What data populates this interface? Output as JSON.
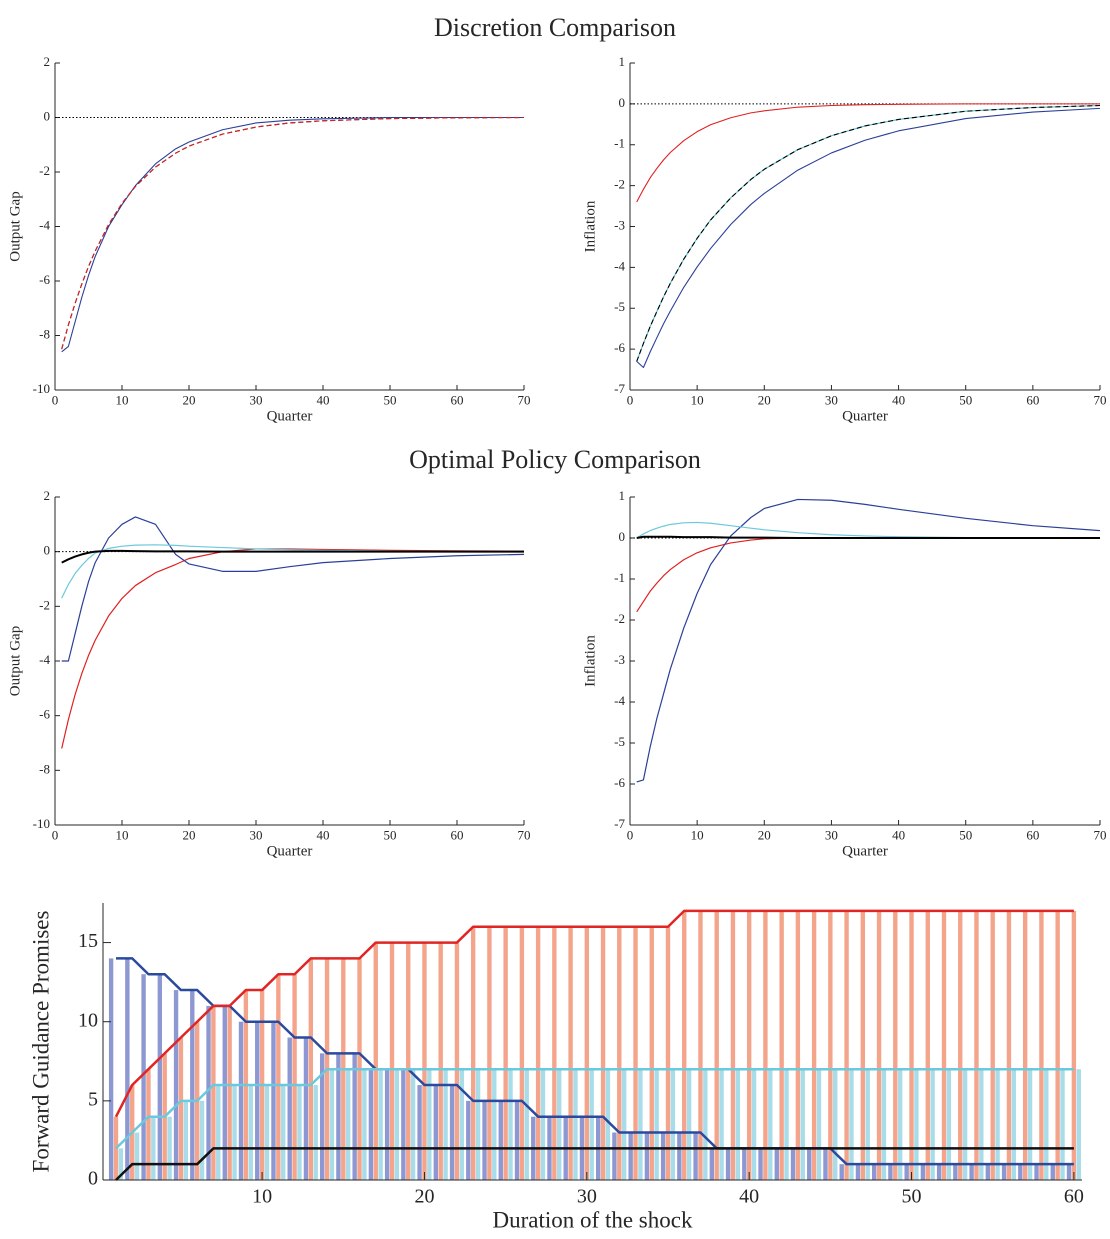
{
  "headings": [
    "Discretion Comparison",
    "Optimal Policy Comparison"
  ],
  "chart_data": [
    {
      "type": "line",
      "xlabel": "Quarter",
      "ylabel": "Output Gap",
      "x": [
        1,
        2,
        3,
        4,
        5,
        6,
        8,
        10,
        12,
        15,
        18,
        20,
        25,
        30,
        35,
        40,
        50,
        60,
        70
      ],
      "xlim": [
        0,
        70
      ],
      "xticks": [
        0,
        10,
        20,
        30,
        40,
        50,
        60,
        70
      ],
      "ylim": [
        -10,
        2
      ],
      "yticks": [
        -10,
        -8,
        -6,
        -4,
        -2,
        0,
        2
      ],
      "hline": 0,
      "series": [
        {
          "color": "#2b3f99",
          "dash": false,
          "values": [
            -8.6,
            -8.4,
            -7.5,
            -6.6,
            -5.8,
            -5.1,
            -4.0,
            -3.2,
            -2.5,
            -1.7,
            -1.15,
            -0.9,
            -0.45,
            -0.2,
            -0.1,
            -0.05,
            0,
            0,
            0
          ]
        },
        {
          "color": "#000000",
          "dash": true,
          "values": [
            -8.5,
            -7.61,
            -6.82,
            -6.11,
            -5.47,
            -4.9,
            -3.93,
            -3.15,
            -2.53,
            -1.82,
            -1.31,
            -1.05,
            -0.61,
            -0.35,
            -0.2,
            -0.12,
            -0.04,
            -0.01,
            0
          ]
        },
        {
          "color": "#e02020",
          "dash": true,
          "values": [
            -8.5,
            -7.61,
            -6.82,
            -6.11,
            -5.47,
            -4.9,
            -3.93,
            -3.15,
            -2.53,
            -1.82,
            -1.31,
            -1.05,
            -0.61,
            -0.35,
            -0.2,
            -0.12,
            -0.04,
            -0.01,
            0
          ]
        }
      ]
    },
    {
      "type": "line",
      "xlabel": "Quarter",
      "ylabel": "Inflation",
      "x": [
        1,
        2,
        3,
        4,
        5,
        6,
        8,
        10,
        12,
        15,
        18,
        20,
        25,
        30,
        35,
        40,
        50,
        60,
        70
      ],
      "xlim": [
        0,
        70
      ],
      "xticks": [
        0,
        10,
        20,
        30,
        40,
        50,
        60,
        70
      ],
      "ylim": [
        -7,
        1
      ],
      "yticks": [
        -7,
        -6,
        -5,
        -4,
        -3,
        -2,
        -1,
        0,
        1
      ],
      "hline": 0,
      "series": [
        {
          "color": "#e02020",
          "dash": false,
          "values": [
            -2.4,
            -2.09,
            -1.81,
            -1.58,
            -1.37,
            -1.19,
            -0.9,
            -0.68,
            -0.51,
            -0.34,
            -0.22,
            -0.17,
            -0.08,
            -0.04,
            -0.02,
            -0.01,
            0,
            0,
            0
          ]
        },
        {
          "color": "#4fc0c8",
          "dash": false,
          "values": [
            -6.3,
            -5.86,
            -5.45,
            -5.08,
            -4.72,
            -4.39,
            -3.8,
            -3.29,
            -2.84,
            -2.3,
            -1.85,
            -1.6,
            -1.12,
            -0.78,
            -0.54,
            -0.38,
            -0.18,
            -0.09,
            -0.04
          ]
        },
        {
          "color": "#000000",
          "dash": true,
          "values": [
            -6.3,
            -5.86,
            -5.45,
            -5.08,
            -4.72,
            -4.39,
            -3.8,
            -3.29,
            -2.84,
            -2.3,
            -1.85,
            -1.6,
            -1.12,
            -0.78,
            -0.54,
            -0.38,
            -0.18,
            -0.09,
            -0.04
          ]
        },
        {
          "color": "#2b3f99",
          "dash": false,
          "values": [
            -6.3,
            -6.45,
            -6.07,
            -5.72,
            -5.38,
            -5.07,
            -4.49,
            -3.99,
            -3.54,
            -2.95,
            -2.46,
            -2.19,
            -1.62,
            -1.2,
            -0.89,
            -0.66,
            -0.36,
            -0.2,
            -0.11
          ]
        }
      ]
    },
    {
      "type": "line",
      "xlabel": "Quarter",
      "ylabel": "Output Gap",
      "x": [
        1,
        2,
        3,
        4,
        5,
        6,
        8,
        10,
        12,
        15,
        18,
        20,
        25,
        30,
        35,
        40,
        50,
        60,
        70
      ],
      "xlim": [
        0,
        70
      ],
      "xticks": [
        0,
        10,
        20,
        30,
        40,
        50,
        60,
        70
      ],
      "ylim": [
        -10,
        2
      ],
      "yticks": [
        -10,
        -8,
        -6,
        -4,
        -2,
        0,
        2
      ],
      "hline": 0,
      "series": [
        {
          "color": "#e02020",
          "dash": false,
          "width": 1.2,
          "values": [
            -7.2,
            -6.14,
            -5.23,
            -4.46,
            -3.8,
            -3.24,
            -2.35,
            -1.71,
            -1.24,
            -0.77,
            -0.47,
            -0.25,
            0,
            0.1,
            0.1,
            0.08,
            0.05,
            0.03,
            0.02
          ]
        },
        {
          "color": "#2b3f99",
          "dash": false,
          "width": 1.2,
          "values": [
            -4,
            -4,
            -3,
            -2,
            -1.1,
            -0.4,
            0.5,
            1,
            1.27,
            1,
            -0.1,
            -0.45,
            -0.72,
            -0.72,
            -0.55,
            -0.4,
            -0.25,
            -0.15,
            -0.1
          ]
        },
        {
          "color": "#6cc8dc",
          "dash": false,
          "width": 1.2,
          "values": [
            -1.7,
            -1.2,
            -0.8,
            -0.5,
            -0.25,
            -0.05,
            0.12,
            0.2,
            0.24,
            0.25,
            0.23,
            0.2,
            0.15,
            0.1,
            0.07,
            0.05,
            0.02,
            0.01,
            0
          ]
        },
        {
          "color": "#000000",
          "dash": false,
          "width": 2,
          "values": [
            -0.4,
            -0.28,
            -0.18,
            -0.1,
            -0.04,
            0,
            0.03,
            0.03,
            0.02,
            0.01,
            0.01,
            0.01,
            0,
            0,
            0,
            0,
            0,
            0,
            0
          ]
        }
      ]
    },
    {
      "type": "line",
      "xlabel": "Quarter",
      "ylabel": "Inflation",
      "x": [
        1,
        2,
        3,
        4,
        5,
        6,
        8,
        10,
        12,
        15,
        18,
        20,
        25,
        30,
        35,
        40,
        50,
        60,
        70
      ],
      "xlim": [
        0,
        70
      ],
      "xticks": [
        0,
        10,
        20,
        30,
        40,
        50,
        60,
        70
      ],
      "ylim": [
        -7,
        1
      ],
      "yticks": [
        -7,
        -6,
        -5,
        -4,
        -3,
        -2,
        -1,
        0,
        1
      ],
      "hline": 0,
      "series": [
        {
          "color": "#e02020",
          "dash": false,
          "width": 1.2,
          "values": [
            -1.8,
            -1.55,
            -1.3,
            -1.1,
            -0.92,
            -0.77,
            -0.53,
            -0.36,
            -0.24,
            -0.12,
            -0.05,
            -0.02,
            0,
            0,
            0,
            0,
            0,
            0,
            0
          ]
        },
        {
          "color": "#2b3f99",
          "dash": false,
          "width": 1.2,
          "values": [
            -5.95,
            -5.9,
            -5.1,
            -4.4,
            -3.8,
            -3.2,
            -2.2,
            -1.35,
            -0.65,
            0.05,
            0.5,
            0.72,
            0.94,
            0.92,
            0.82,
            0.7,
            0.48,
            0.3,
            0.18
          ]
        },
        {
          "color": "#6cc8dc",
          "dash": false,
          "width": 1.2,
          "values": [
            0,
            0.1,
            0.18,
            0.24,
            0.29,
            0.33,
            0.37,
            0.38,
            0.36,
            0.3,
            0.24,
            0.2,
            0.13,
            0.08,
            0.05,
            0.03,
            0.01,
            0,
            0
          ]
        },
        {
          "color": "#000000",
          "dash": false,
          "width": 2,
          "values": [
            0,
            0.03,
            0.03,
            0.03,
            0.03,
            0.03,
            0.02,
            0.02,
            0.02,
            0.01,
            0.01,
            0.01,
            0,
            0,
            0,
            0,
            0,
            0,
            0
          ]
        }
      ]
    },
    {
      "type": "bar_line",
      "xlabel": "Duration of the shock",
      "ylabel": "Forward Guidance Promises",
      "x": [
        1,
        2,
        3,
        4,
        5,
        6,
        7,
        8,
        9,
        10,
        11,
        12,
        13,
        14,
        15,
        16,
        17,
        18,
        19,
        20,
        21,
        22,
        23,
        24,
        25,
        26,
        27,
        28,
        29,
        30,
        31,
        32,
        33,
        34,
        35,
        36,
        37,
        38,
        39,
        40,
        41,
        42,
        43,
        44,
        45,
        46,
        47,
        48,
        49,
        50,
        51,
        52,
        53,
        54,
        55,
        56,
        57,
        58,
        59,
        60
      ],
      "xlim": [
        0.2,
        60.5
      ],
      "xticks": [
        10,
        20,
        30,
        40,
        50,
        60
      ],
      "ylim": [
        0,
        17.5
      ],
      "yticks": [
        0,
        5,
        10,
        15
      ],
      "series": [
        {
          "color": "#2b4a9e",
          "bar_color": "#8d97d2",
          "values": [
            14,
            14,
            13,
            13,
            12,
            12,
            11,
            11,
            10,
            10,
            10,
            9,
            9,
            8,
            8,
            8,
            7,
            7,
            7,
            6,
            6,
            6,
            5,
            5,
            5,
            5,
            4,
            4,
            4,
            4,
            4,
            3,
            3,
            3,
            3,
            3,
            3,
            2,
            2,
            2,
            2,
            2,
            2,
            2,
            2,
            1,
            1,
            1,
            1,
            1,
            1,
            1,
            1,
            1,
            1,
            1,
            1,
            1,
            1,
            1
          ]
        },
        {
          "color": "#e02525",
          "bar_color": "#f4a48a",
          "values": [
            4,
            6,
            7,
            8,
            9,
            10,
            11,
            11,
            12,
            12,
            13,
            13,
            14,
            14,
            14,
            14,
            15,
            15,
            15,
            15,
            15,
            15,
            16,
            16,
            16,
            16,
            16,
            16,
            16,
            16,
            16,
            16,
            16,
            16,
            16,
            17,
            17,
            17,
            17,
            17,
            17,
            17,
            17,
            17,
            17,
            17,
            17,
            17,
            17,
            17,
            17,
            17,
            17,
            17,
            17,
            17,
            17,
            17,
            17,
            17
          ]
        },
        {
          "color": "#6cc8dc",
          "bar_color": "#a8dce8",
          "values": [
            2,
            3,
            4,
            4,
            5,
            5,
            6,
            6,
            6,
            6,
            6,
            6,
            6,
            7,
            7,
            7,
            7,
            7,
            7,
            7,
            7,
            7,
            7,
            7,
            7,
            7,
            7,
            7,
            7,
            7,
            7,
            7,
            7,
            7,
            7,
            7,
            7,
            7,
            7,
            7,
            7,
            7,
            7,
            7,
            7,
            7,
            7,
            7,
            7,
            7,
            7,
            7,
            7,
            7,
            7,
            7,
            7,
            7,
            7,
            7
          ]
        },
        {
          "color": "#111111",
          "values": [
            0,
            1,
            1,
            1,
            1,
            1,
            2,
            2,
            2,
            2,
            2,
            2,
            2,
            2,
            2,
            2,
            2,
            2,
            2,
            2,
            2,
            2,
            2,
            2,
            2,
            2,
            2,
            2,
            2,
            2,
            2,
            2,
            2,
            2,
            2,
            2,
            2,
            2,
            2,
            2,
            2,
            2,
            2,
            2,
            2,
            2,
            2,
            2,
            2,
            2,
            2,
            2,
            2,
            2,
            2,
            2,
            2,
            2,
            2,
            2
          ]
        }
      ]
    }
  ]
}
